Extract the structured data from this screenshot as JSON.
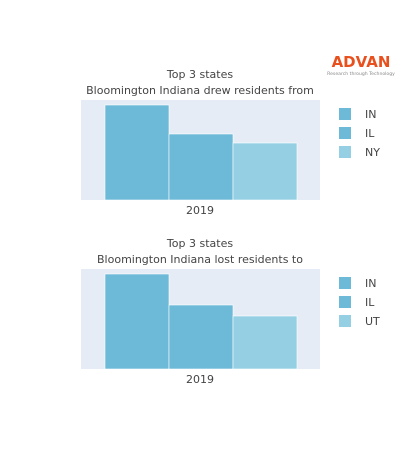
{
  "logo": {
    "name": "ADVAN",
    "tagline": "Research through Technology",
    "color": "#e8501e"
  },
  "chart_data": [
    {
      "type": "bar",
      "title": "Top 3 states",
      "subtitle": "Bloomington Indiana drew residents from",
      "categories": [
        "2019"
      ],
      "series": [
        {
          "name": "IN",
          "values": [
            95
          ],
          "color": "#6dbad8"
        },
        {
          "name": "IL",
          "values": [
            66
          ],
          "color": "#6dbad8"
        },
        {
          "name": "NY",
          "values": [
            57
          ],
          "color": "#95cfe4"
        }
      ],
      "ylim": [
        0,
        100
      ],
      "grid": false,
      "legend": "right"
    },
    {
      "type": "bar",
      "title": "Top 3 states",
      "subtitle": "Bloomington Indiana lost residents to",
      "categories": [
        "2019"
      ],
      "series": [
        {
          "name": "IN",
          "values": [
            95
          ],
          "color": "#6dbad8"
        },
        {
          "name": "IL",
          "values": [
            64
          ],
          "color": "#6dbad8"
        },
        {
          "name": "UT",
          "values": [
            53
          ],
          "color": "#95cfe4"
        }
      ],
      "ylim": [
        0,
        100
      ],
      "grid": false,
      "legend": "right"
    }
  ]
}
